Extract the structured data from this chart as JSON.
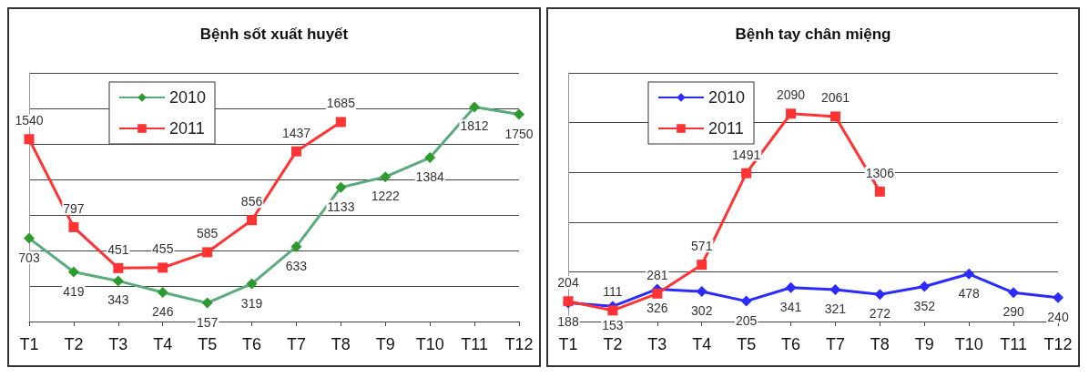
{
  "chart_data": [
    {
      "type": "line",
      "title": "Bệnh sốt xuất huyết",
      "categories": [
        "T1",
        "T2",
        "T3",
        "T4",
        "T5",
        "T6",
        "T7",
        "T8",
        "T9",
        "T10",
        "T11",
        "T12"
      ],
      "series": [
        {
          "name": "2010",
          "color": "#5aab7c",
          "marker": "diamond",
          "values": [
            703,
            419,
            343,
            246,
            157,
            319,
            633,
            1133,
            1222,
            1384,
            1812,
            1750
          ]
        },
        {
          "name": "2011",
          "color": "#ff3333",
          "marker": "square",
          "values": [
            1540,
            797,
            451,
            455,
            585,
            856,
            1437,
            1685,
            null,
            null,
            null,
            null
          ]
        }
      ],
      "data_labels": true,
      "grid": "y",
      "legend": "top left"
    },
    {
      "type": "line",
      "title": "Bệnh tay chân miệng",
      "categories": [
        "T1",
        "T2",
        "T3",
        "T4",
        "T5",
        "T6",
        "T7",
        "T8",
        "T9",
        "T10",
        "T11",
        "T12"
      ],
      "series": [
        {
          "name": "2010",
          "color": "#2b2bff",
          "marker": "diamond",
          "values": [
            188,
            153,
            326,
            302,
            205,
            341,
            321,
            272,
            352,
            478,
            290,
            240
          ]
        },
        {
          "name": "2011",
          "color": "#ff3333",
          "marker": "square",
          "values": [
            204,
            111,
            281,
            571,
            1491,
            2090,
            2061,
            1306,
            null,
            null,
            null,
            null
          ]
        }
      ],
      "data_labels": true,
      "grid": "y",
      "legend": "top left"
    }
  ]
}
